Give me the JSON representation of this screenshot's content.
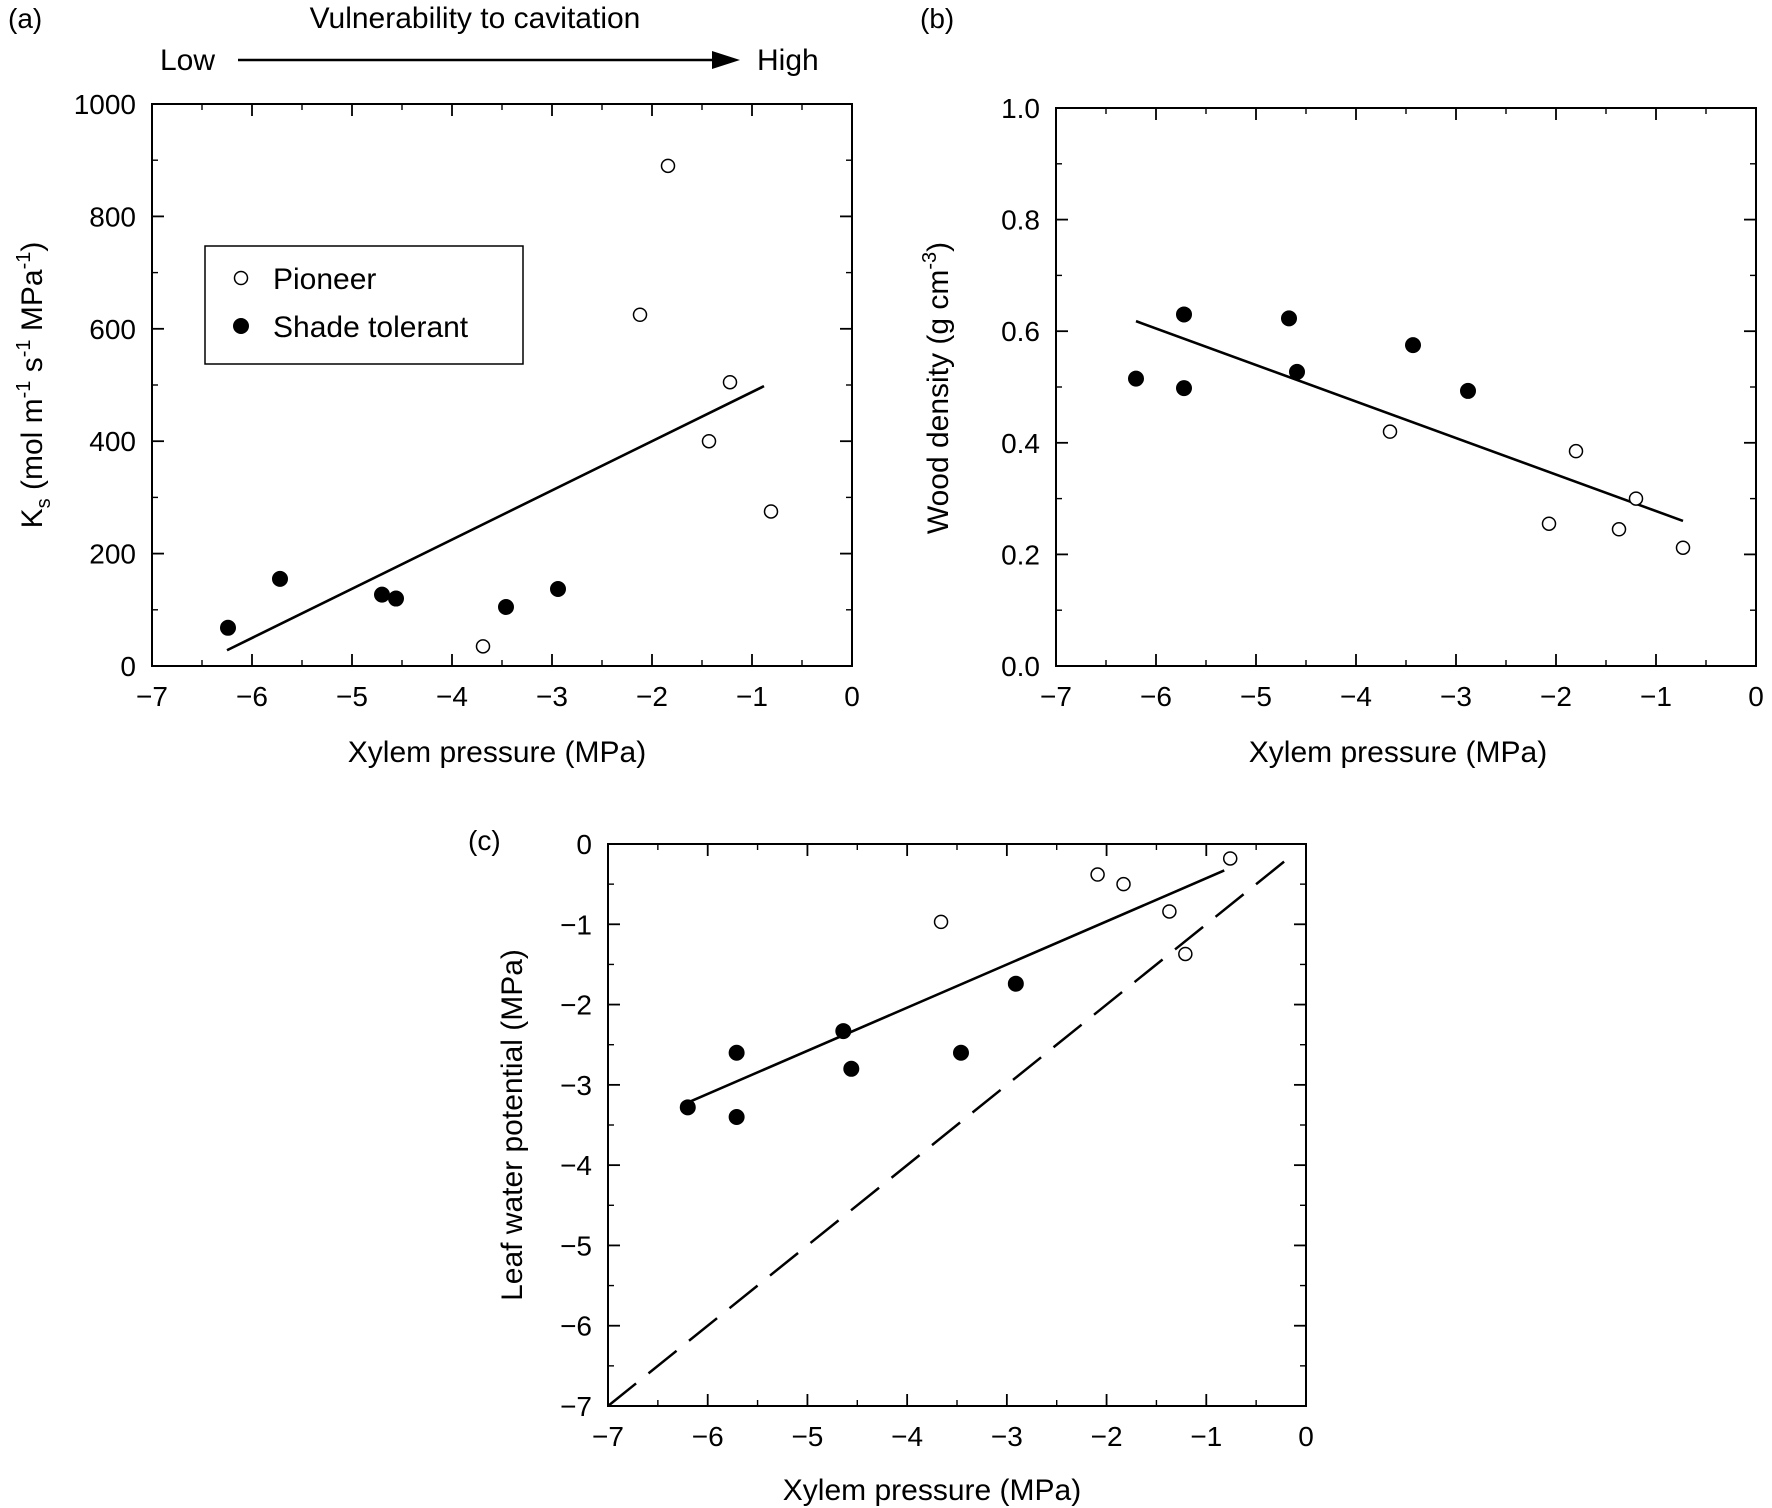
{
  "chart_data": [
    {
      "panel_label": "(a)",
      "type": "scatter",
      "xlabel": "Xylem pressure (MPa)",
      "ylabel_main": "K",
      "ylabel_sub": "s",
      "ylabel_rest": " (mol m",
      "ylabel_sup1": "-1",
      "ylabel_mid1": " s",
      "ylabel_sup2": "-1",
      "ylabel_mid2": " MPa",
      "ylabel_sup3": "-1",
      "ylabel_end": ")",
      "xlim": [
        -7,
        0
      ],
      "ylim": [
        0,
        1000
      ],
      "x_ticks": [
        "−7",
        "−6",
        "−5",
        "−4",
        "−3",
        "−2",
        "−1",
        "0"
      ],
      "y_ticks": [
        "0",
        "200",
        "400",
        "600",
        "800",
        "1000"
      ],
      "vulnerability": {
        "title": "Vulnerability to cavitation",
        "low": "Low",
        "high": "High"
      },
      "legend": {
        "pioneer": "Pioneer",
        "shade": "Shade tolerant",
        "position": "upper-left"
      },
      "series": [
        {
          "name": "Pioneer",
          "filled": false,
          "points": [
            [
              -3.69,
              35
            ],
            [
              -2.12,
              625
            ],
            [
              -1.84,
              890
            ],
            [
              -1.43,
              400
            ],
            [
              -1.22,
              505
            ],
            [
              -0.81,
              275
            ]
          ]
        },
        {
          "name": "Shade tolerant",
          "filled": true,
          "points": [
            [
              -6.24,
              68
            ],
            [
              -5.72,
              155
            ],
            [
              -4.7,
              127
            ],
            [
              -4.56,
              120
            ],
            [
              -3.46,
              105
            ],
            [
              -2.94,
              137
            ]
          ]
        }
      ],
      "fit_line": [
        [
          -6.25,
          28
        ],
        [
          -0.88,
          498
        ]
      ]
    },
    {
      "panel_label": "(b)",
      "type": "scatter",
      "xlabel": "Xylem pressure (MPa)",
      "ylabel_main": "Wood density (g cm",
      "ylabel_sup": "-3",
      "ylabel_end": ")",
      "xlim": [
        -7,
        0
      ],
      "ylim": [
        0,
        1.0
      ],
      "x_ticks": [
        "−7",
        "−6",
        "−5",
        "−4",
        "−3",
        "−2",
        "−1",
        "0"
      ],
      "y_ticks": [
        "0.0",
        "0.2",
        "0.4",
        "0.6",
        "0.8",
        "1.0"
      ],
      "series": [
        {
          "name": "Pioneer",
          "filled": false,
          "points": [
            [
              -3.66,
              0.42
            ],
            [
              -2.07,
              0.255
            ],
            [
              -1.8,
              0.385
            ],
            [
              -1.37,
              0.245
            ],
            [
              -1.2,
              0.3
            ],
            [
              -0.73,
              0.212
            ]
          ]
        },
        {
          "name": "Shade tolerant",
          "filled": true,
          "points": [
            [
              -6.2,
              0.515
            ],
            [
              -5.72,
              0.498
            ],
            [
              -5.72,
              0.63
            ],
            [
              -4.67,
              0.623
            ],
            [
              -4.59,
              0.527
            ],
            [
              -3.43,
              0.575
            ],
            [
              -2.88,
              0.493
            ]
          ]
        }
      ],
      "fit_line": [
        [
          -6.2,
          0.618
        ],
        [
          -0.73,
          0.26
        ]
      ]
    },
    {
      "panel_label": "(c)",
      "type": "scatter",
      "xlabel": "Xylem pressure (MPa)",
      "ylabel": "Leaf water potential (MPa)",
      "xlim": [
        -7,
        0
      ],
      "ylim": [
        -7,
        0
      ],
      "x_ticks": [
        "−7",
        "−6",
        "−5",
        "−4",
        "−3",
        "−2",
        "−1",
        "0"
      ],
      "y_ticks": [
        "−7",
        "−6",
        "−5",
        "−4",
        "−3",
        "−2",
        "−1",
        "0"
      ],
      "series": [
        {
          "name": "Pioneer",
          "filled": false,
          "points": [
            [
              -3.66,
              -0.97
            ],
            [
              -2.09,
              -0.38
            ],
            [
              -1.83,
              -0.5
            ],
            [
              -1.37,
              -0.84
            ],
            [
              -1.21,
              -1.37
            ],
            [
              -0.76,
              -0.18
            ]
          ]
        },
        {
          "name": "Shade tolerant",
          "filled": true,
          "points": [
            [
              -6.2,
              -3.28
            ],
            [
              -5.71,
              -2.6
            ],
            [
              -5.71,
              -3.4
            ],
            [
              -4.64,
              -2.33
            ],
            [
              -4.56,
              -2.8
            ],
            [
              -3.46,
              -2.6
            ],
            [
              -2.91,
              -1.74
            ]
          ]
        }
      ],
      "fit_line": [
        [
          -6.2,
          -3.22
        ],
        [
          -0.82,
          -0.33
        ]
      ],
      "identity_line": [
        [
          -7,
          -7
        ],
        [
          -0.14,
          -0.14
        ]
      ]
    }
  ]
}
